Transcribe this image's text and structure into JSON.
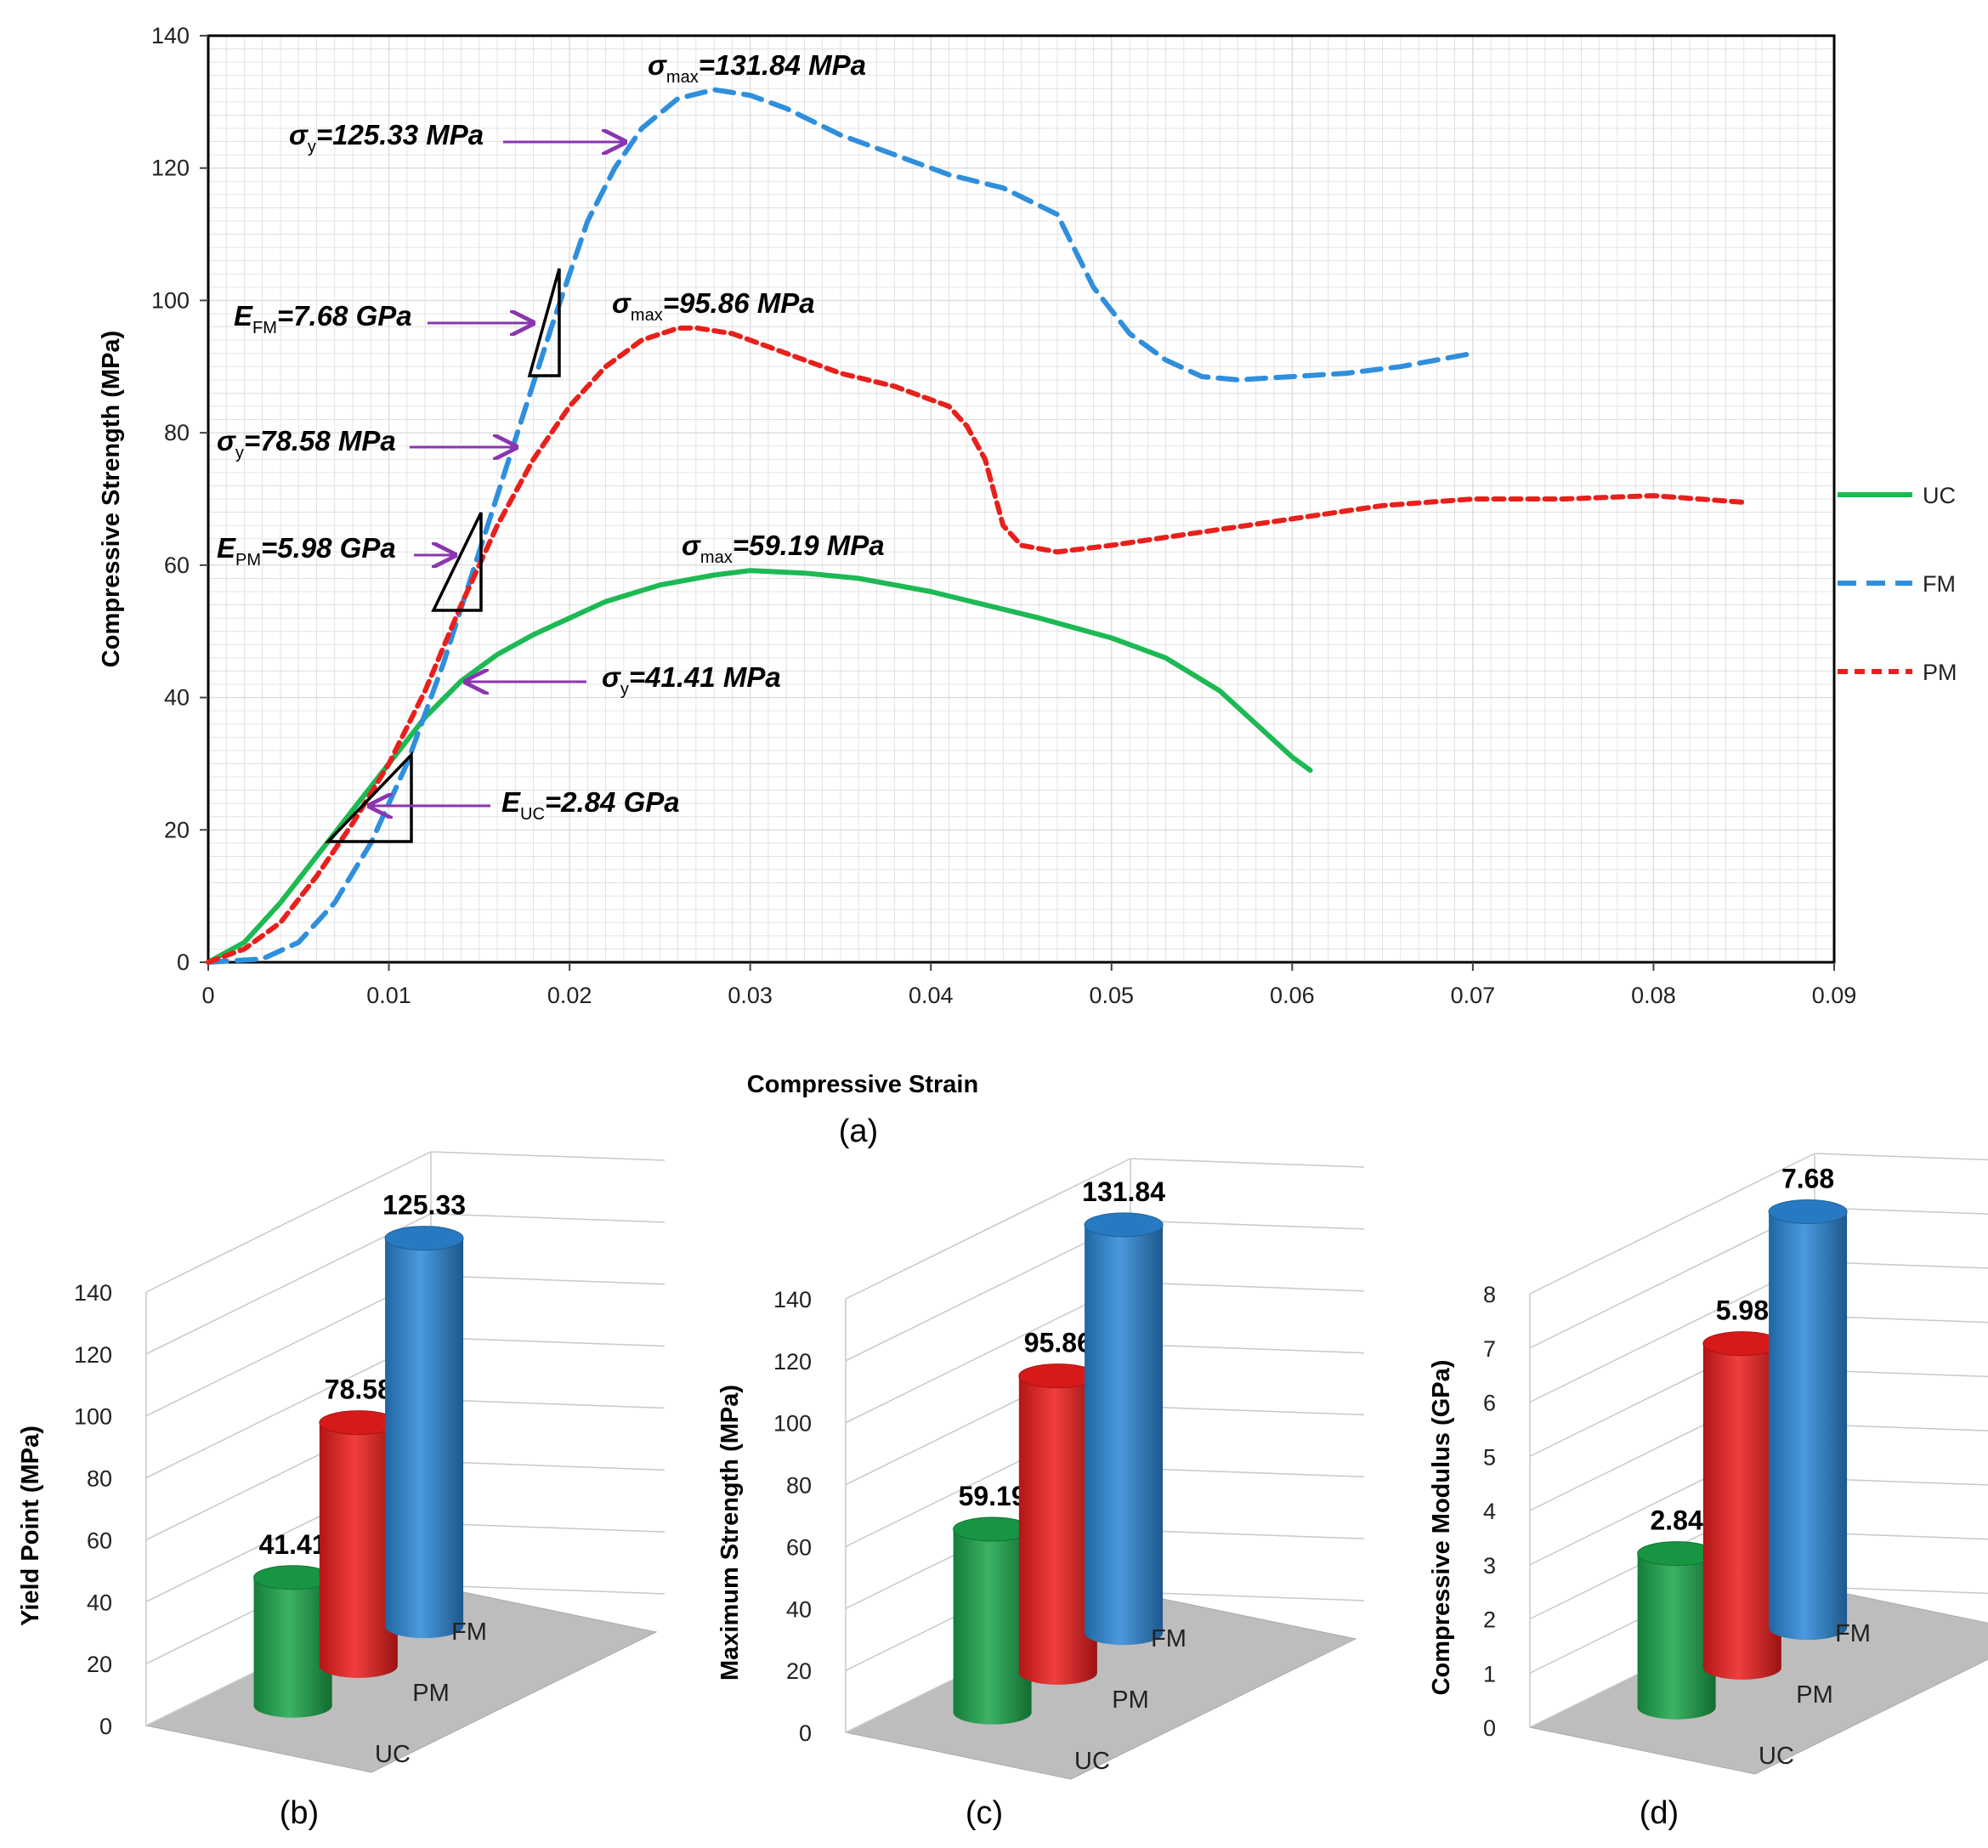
{
  "chart_data": [
    {
      "id": "a",
      "type": "line",
      "panel_label": "(a)",
      "xlabel": "Compressive Strain",
      "ylabel": "Compressive Strength (MPa)",
      "xlim": [
        0,
        0.09
      ],
      "ylim": [
        0,
        140
      ],
      "x_ticks": [
        "0",
        "0.01",
        "0.02",
        "0.03",
        "0.04",
        "0.05",
        "0.06",
        "0.07",
        "0.08",
        "0.09"
      ],
      "y_ticks": [
        "0",
        "20",
        "40",
        "60",
        "80",
        "100",
        "120",
        "140"
      ],
      "grid": true,
      "legend_position": "right",
      "series": [
        {
          "name": "UC",
          "color": "#1db954",
          "style": "solid",
          "points": [
            [
              0,
              0
            ],
            [
              0.002,
              3
            ],
            [
              0.004,
              9
            ],
            [
              0.006,
              16
            ],
            [
              0.008,
              23
            ],
            [
              0.01,
              30
            ],
            [
              0.012,
              37
            ],
            [
              0.014,
              42.5
            ],
            [
              0.016,
              46.5
            ],
            [
              0.018,
              49.5
            ],
            [
              0.02,
              52
            ],
            [
              0.022,
              54.5
            ],
            [
              0.025,
              57
            ],
            [
              0.028,
              58.5
            ],
            [
              0.03,
              59.19
            ],
            [
              0.033,
              58.8
            ],
            [
              0.036,
              58
            ],
            [
              0.04,
              56
            ],
            [
              0.043,
              54
            ],
            [
              0.046,
              52
            ],
            [
              0.05,
              49
            ],
            [
              0.053,
              46
            ],
            [
              0.056,
              41
            ],
            [
              0.058,
              36
            ],
            [
              0.06,
              31
            ],
            [
              0.061,
              29
            ]
          ]
        },
        {
          "name": "FM",
          "color": "#2f8fdc",
          "style": "dashed",
          "points": [
            [
              0,
              0
            ],
            [
              0.003,
              0.5
            ],
            [
              0.005,
              3
            ],
            [
              0.007,
              9
            ],
            [
              0.009,
              18
            ],
            [
              0.011,
              30
            ],
            [
              0.013,
              45
            ],
            [
              0.015,
              62
            ],
            [
              0.017,
              79
            ],
            [
              0.019,
              96
            ],
            [
              0.021,
              112
            ],
            [
              0.0225,
              120
            ],
            [
              0.024,
              126
            ],
            [
              0.026,
              130.5
            ],
            [
              0.028,
              131.84
            ],
            [
              0.03,
              131
            ],
            [
              0.032,
              129
            ],
            [
              0.035,
              125
            ],
            [
              0.038,
              122
            ],
            [
              0.041,
              119
            ],
            [
              0.044,
              117
            ],
            [
              0.047,
              113
            ],
            [
              0.049,
              102
            ],
            [
              0.051,
              95
            ],
            [
              0.053,
              91
            ],
            [
              0.055,
              88.5
            ],
            [
              0.057,
              88
            ],
            [
              0.06,
              88.5
            ],
            [
              0.063,
              89
            ],
            [
              0.066,
              90
            ],
            [
              0.07,
              92
            ]
          ]
        },
        {
          "name": "PM",
          "color": "#e8201c",
          "style": "dotted",
          "points": [
            [
              0,
              0
            ],
            [
              0.002,
              2
            ],
            [
              0.004,
              6
            ],
            [
              0.006,
              13
            ],
            [
              0.008,
              21
            ],
            [
              0.01,
              30
            ],
            [
              0.012,
              41
            ],
            [
              0.014,
              54
            ],
            [
              0.016,
              66
            ],
            [
              0.018,
              76
            ],
            [
              0.02,
              84
            ],
            [
              0.022,
              90
            ],
            [
              0.024,
              94
            ],
            [
              0.026,
              95.8
            ],
            [
              0.027,
              95.86
            ],
            [
              0.029,
              95
            ],
            [
              0.032,
              92
            ],
            [
              0.035,
              89
            ],
            [
              0.038,
              87
            ],
            [
              0.041,
              84
            ],
            [
              0.042,
              81
            ],
            [
              0.043,
              76
            ],
            [
              0.044,
              66
            ],
            [
              0.045,
              63
            ],
            [
              0.047,
              62
            ],
            [
              0.05,
              63
            ],
            [
              0.055,
              65
            ],
            [
              0.06,
              67
            ],
            [
              0.065,
              69
            ],
            [
              0.07,
              70
            ],
            [
              0.075,
              70
            ],
            [
              0.08,
              70.5
            ],
            [
              0.085,
              69.5
            ]
          ]
        }
      ],
      "annotations": {
        "fm_smax": {
          "sym": "σ",
          "sub": "max",
          "text": "=131.84 MPa"
        },
        "fm_sy": {
          "sym": "σ",
          "sub": "y",
          "text": "=125.33 MPa"
        },
        "fm_e": {
          "sym": "E",
          "sub": "FM",
          "text": "=7.68 GPa"
        },
        "pm_smax": {
          "sym": "σ",
          "sub": "max",
          "text": "=95.86 MPa"
        },
        "pm_sy": {
          "sym": "σ",
          "sub": "y",
          "text": "=78.58 MPa"
        },
        "pm_e": {
          "sym": "E",
          "sub": "PM",
          "text": "=5.98 GPa"
        },
        "uc_smax": {
          "sym": "σ",
          "sub": "max",
          "text": "=59.19 MPa"
        },
        "uc_sy": {
          "sym": "σ",
          "sub": "y",
          "text": "=41.41 MPa"
        },
        "uc_e": {
          "sym": "E",
          "sub": "UC",
          "text": "=2.84 GPa"
        }
      }
    },
    {
      "id": "b",
      "type": "bar",
      "panel_label": "(b)",
      "ylabel": "Yield Point (MPa)",
      "ylim": [
        0,
        140
      ],
      "y_ticks": [
        "0",
        "20",
        "40",
        "60",
        "80",
        "100",
        "120",
        "140"
      ],
      "categories": [
        "UC",
        "PM",
        "FM"
      ],
      "values": [
        41.41,
        78.58,
        125.33
      ],
      "value_labels": [
        "41.41",
        "78.58",
        "125.33"
      ]
    },
    {
      "id": "c",
      "type": "bar",
      "panel_label": "(c)",
      "ylabel": "Maximum Strength (MPa)",
      "ylim": [
        0,
        140
      ],
      "y_ticks": [
        "0",
        "20",
        "40",
        "60",
        "80",
        "100",
        "120",
        "140"
      ],
      "categories": [
        "UC",
        "PM",
        "FM"
      ],
      "values": [
        59.19,
        95.86,
        131.84
      ],
      "value_labels": [
        "59.19",
        "95.86",
        "131.84"
      ]
    },
    {
      "id": "d",
      "type": "bar",
      "panel_label": "(d)",
      "ylabel": "Compressive Modulus (GPa)",
      "ylim": [
        0,
        8
      ],
      "y_ticks": [
        "0",
        "1",
        "2",
        "3",
        "4",
        "5",
        "6",
        "7",
        "8"
      ],
      "categories": [
        "UC",
        "PM",
        "FM"
      ],
      "values": [
        2.84,
        5.98,
        7.68
      ],
      "value_labels": [
        "2.84",
        "5.98",
        "7.68"
      ]
    }
  ],
  "colors": {
    "uc": "#1db954",
    "fm": "#2f8fdc",
    "pm": "#e8201c",
    "arrow": "#8a35b0",
    "grid": "#dcdcdc",
    "floor": "#bdbdbd",
    "bar_uc": "#1aa64a",
    "bar_pm": "#ee1c1c",
    "bar_fm": "#2b88d8"
  }
}
